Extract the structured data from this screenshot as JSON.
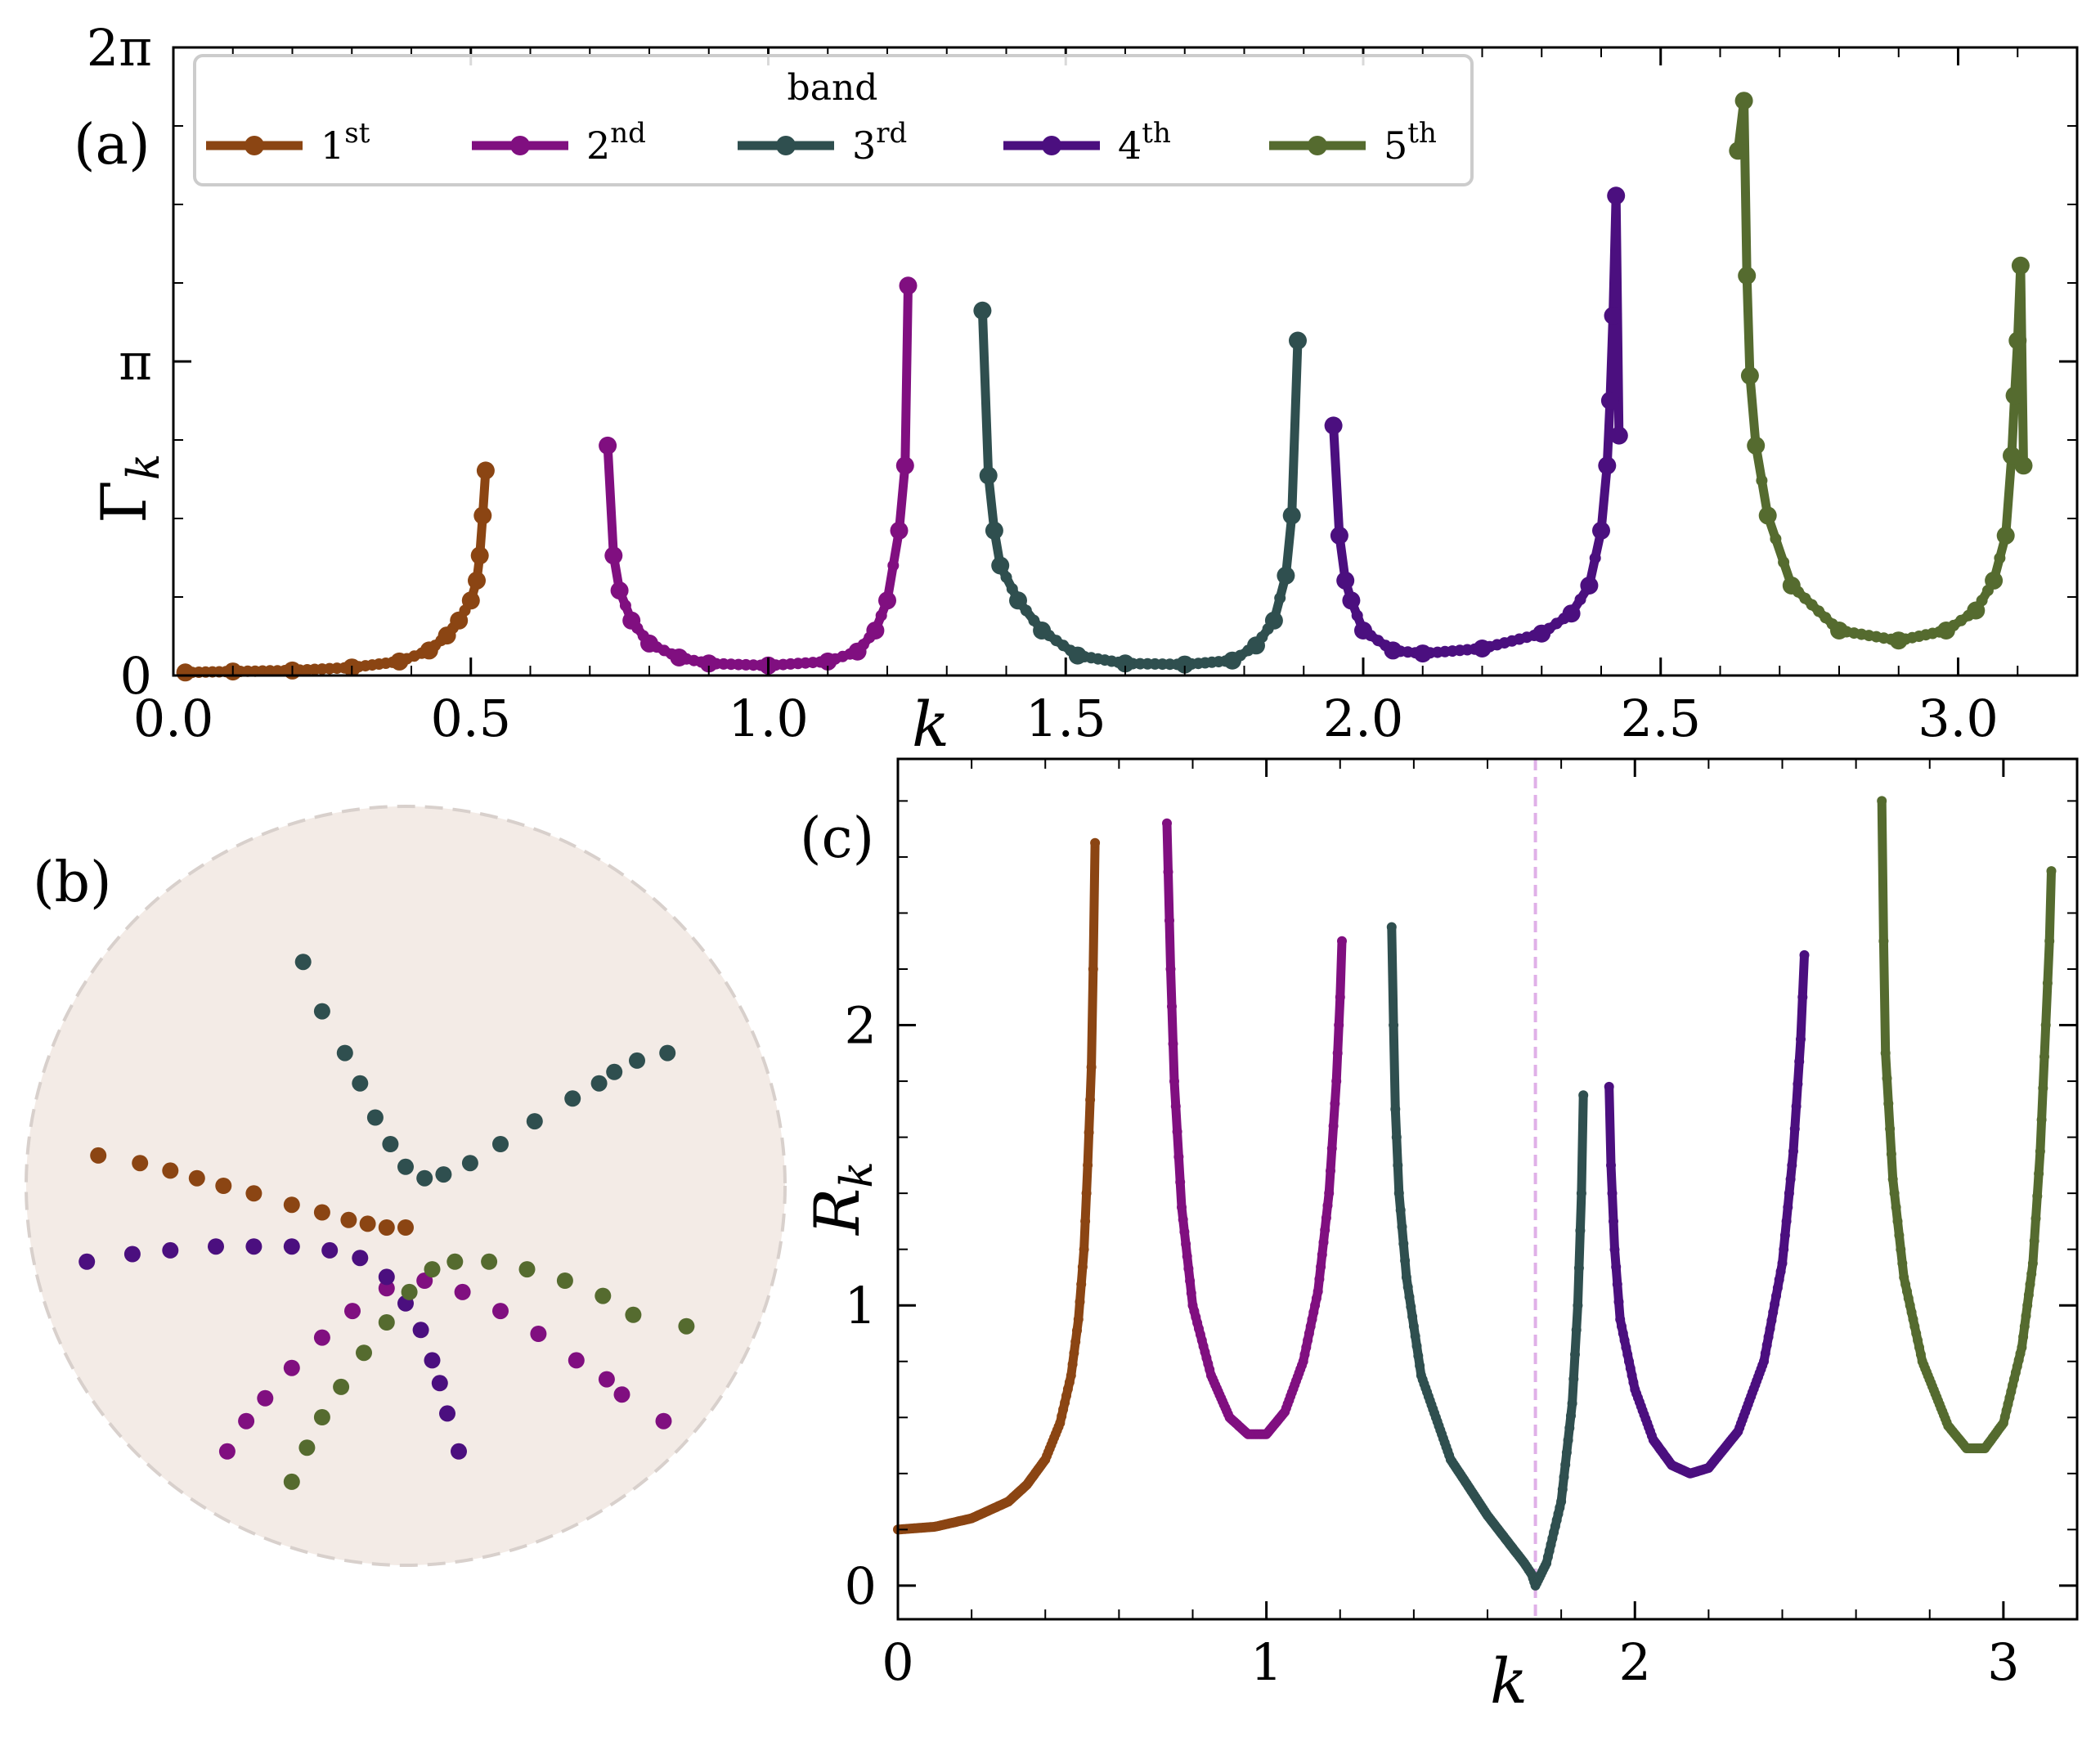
{
  "chart_data": [
    {
      "id": "a",
      "panel_label": "(a)",
      "type": "line",
      "xlabel": "k",
      "ylabel": "Γ",
      "ylabel_sub": "k",
      "xlim": [
        0,
        3.2
      ],
      "ylim": [
        0,
        6.283
      ],
      "x_ticks": [
        {
          "value": 0,
          "label": "0.0"
        },
        {
          "value": 0.5,
          "label": "0.5"
        },
        {
          "value": 1.0,
          "label": "1.0"
        },
        {
          "value": 1.5,
          "label": "1.5"
        },
        {
          "value": 2.0,
          "label": "2.0"
        },
        {
          "value": 2.5,
          "label": "2.5"
        },
        {
          "value": 3.0,
          "label": "3.0"
        }
      ],
      "y_ticks": [
        {
          "value": 0,
          "label": "0"
        },
        {
          "value": 3.1416,
          "label": "π"
        },
        {
          "value": 6.2832,
          "label": "2π"
        }
      ],
      "legend": {
        "title": "band",
        "placement": "top",
        "entries": [
          {
            "base": "1",
            "sup": "st"
          },
          {
            "base": "2",
            "sup": "nd"
          },
          {
            "base": "3",
            "sup": "rd"
          },
          {
            "base": "4",
            "sup": "th"
          },
          {
            "base": "5",
            "sup": "th"
          }
        ]
      },
      "series": [
        {
          "name": "1st",
          "color": "#8B4513",
          "points": [
            [
              0.02,
              0.03
            ],
            [
              0.1,
              0.04
            ],
            [
              0.2,
              0.05
            ],
            [
              0.3,
              0.08
            ],
            [
              0.38,
              0.14
            ],
            [
              0.43,
              0.25
            ],
            [
              0.46,
              0.4
            ],
            [
              0.48,
              0.55
            ],
            [
              0.5,
              0.75
            ],
            [
              0.51,
              0.95
            ],
            [
              0.515,
              1.2
            ],
            [
              0.52,
              1.6
            ],
            [
              0.525,
              2.05
            ]
          ]
        },
        {
          "name": "2nd",
          "color": "#800F80",
          "points": [
            [
              0.73,
              2.3
            ],
            [
              0.74,
              1.2
            ],
            [
              0.75,
              0.85
            ],
            [
              0.77,
              0.55
            ],
            [
              0.8,
              0.32
            ],
            [
              0.85,
              0.18
            ],
            [
              0.9,
              0.12
            ],
            [
              1.0,
              0.1
            ],
            [
              1.1,
              0.14
            ],
            [
              1.15,
              0.24
            ],
            [
              1.18,
              0.45
            ],
            [
              1.2,
              0.75
            ],
            [
              1.22,
              1.45
            ],
            [
              1.23,
              2.1
            ],
            [
              1.235,
              3.9
            ]
          ]
        },
        {
          "name": "3rd",
          "color": "#2F4F4F",
          "points": [
            [
              1.36,
              3.65
            ],
            [
              1.37,
              2.0
            ],
            [
              1.38,
              1.45
            ],
            [
              1.39,
              1.1
            ],
            [
              1.42,
              0.75
            ],
            [
              1.46,
              0.45
            ],
            [
              1.52,
              0.2
            ],
            [
              1.6,
              0.12
            ],
            [
              1.7,
              0.11
            ],
            [
              1.78,
              0.15
            ],
            [
              1.82,
              0.3
            ],
            [
              1.85,
              0.55
            ],
            [
              1.87,
              1.0
            ],
            [
              1.88,
              1.6
            ],
            [
              1.89,
              3.35
            ]
          ]
        },
        {
          "name": "4th",
          "color": "#4B0F7F",
          "points": [
            [
              1.95,
              2.5
            ],
            [
              1.96,
              1.4
            ],
            [
              1.97,
              0.95
            ],
            [
              1.98,
              0.75
            ],
            [
              2.0,
              0.45
            ],
            [
              2.05,
              0.25
            ],
            [
              2.1,
              0.22
            ],
            [
              2.2,
              0.27
            ],
            [
              2.3,
              0.42
            ],
            [
              2.35,
              0.62
            ],
            [
              2.38,
              0.9
            ],
            [
              2.4,
              1.45
            ],
            [
              2.41,
              2.1
            ],
            [
              2.415,
              2.75
            ],
            [
              2.42,
              3.6
            ],
            [
              2.425,
              4.8
            ],
            [
              2.43,
              2.4
            ]
          ]
        },
        {
          "name": "5th",
          "color": "#556B2F",
          "points": [
            [
              2.63,
              5.25
            ],
            [
              2.64,
              5.75
            ],
            [
              2.645,
              4.0
            ],
            [
              2.65,
              3.0
            ],
            [
              2.66,
              2.3
            ],
            [
              2.68,
              1.6
            ],
            [
              2.72,
              0.9
            ],
            [
              2.8,
              0.45
            ],
            [
              2.9,
              0.35
            ],
            [
              2.98,
              0.45
            ],
            [
              3.03,
              0.65
            ],
            [
              3.06,
              0.95
            ],
            [
              3.08,
              1.4
            ],
            [
              3.09,
              2.2
            ],
            [
              3.095,
              2.8
            ],
            [
              3.1,
              3.35
            ],
            [
              3.105,
              4.1
            ],
            [
              3.11,
              2.1
            ]
          ]
        }
      ]
    },
    {
      "id": "b",
      "panel_label": "(b)",
      "type": "scatter",
      "description_units": "complex-plane unit disk",
      "xlim": [
        -1,
        1
      ],
      "ylim": [
        -1,
        1
      ],
      "series": [
        {
          "name": "1st",
          "color": "#8B4513",
          "points": [
            [
              -0.81,
              0.08
            ],
            [
              -0.7,
              0.06
            ],
            [
              -0.62,
              0.04
            ],
            [
              -0.55,
              0.02
            ],
            [
              -0.48,
              0.0
            ],
            [
              -0.4,
              -0.02
            ],
            [
              -0.3,
              -0.05
            ],
            [
              -0.22,
              -0.07
            ],
            [
              -0.15,
              -0.09
            ],
            [
              -0.1,
              -0.1
            ],
            [
              -0.05,
              -0.11
            ],
            [
              0.0,
              -0.11
            ]
          ]
        },
        {
          "name": "2nd",
          "color": "#800F80",
          "points": [
            [
              -0.47,
              -0.7
            ],
            [
              -0.42,
              -0.62
            ],
            [
              -0.37,
              -0.56
            ],
            [
              -0.3,
              -0.48
            ],
            [
              -0.22,
              -0.4
            ],
            [
              -0.14,
              -0.33
            ],
            [
              -0.05,
              -0.27
            ],
            [
              0.05,
              -0.25
            ],
            [
              0.15,
              -0.28
            ],
            [
              0.25,
              -0.33
            ],
            [
              0.35,
              -0.39
            ],
            [
              0.45,
              -0.46
            ],
            [
              0.53,
              -0.51
            ],
            [
              0.57,
              -0.55
            ],
            [
              0.68,
              -0.62
            ]
          ]
        },
        {
          "name": "3rd",
          "color": "#2F4F4F",
          "points": [
            [
              -0.27,
              0.59
            ],
            [
              -0.22,
              0.46
            ],
            [
              -0.16,
              0.35
            ],
            [
              -0.12,
              0.27
            ],
            [
              -0.08,
              0.18
            ],
            [
              -0.04,
              0.11
            ],
            [
              0.0,
              0.05
            ],
            [
              0.05,
              0.02
            ],
            [
              0.1,
              0.03
            ],
            [
              0.17,
              0.06
            ],
            [
              0.25,
              0.11
            ],
            [
              0.34,
              0.17
            ],
            [
              0.44,
              0.23
            ],
            [
              0.51,
              0.27
            ],
            [
              0.55,
              0.3
            ],
            [
              0.61,
              0.33
            ],
            [
              0.69,
              0.35
            ]
          ]
        },
        {
          "name": "4th",
          "color": "#4B0F7F",
          "points": [
            [
              -0.84,
              -0.2
            ],
            [
              -0.72,
              -0.18
            ],
            [
              -0.62,
              -0.17
            ],
            [
              -0.5,
              -0.16
            ],
            [
              -0.4,
              -0.16
            ],
            [
              -0.3,
              -0.16
            ],
            [
              -0.2,
              -0.17
            ],
            [
              -0.12,
              -0.19
            ],
            [
              -0.05,
              -0.24
            ],
            [
              0.0,
              -0.31
            ],
            [
              0.04,
              -0.38
            ],
            [
              0.07,
              -0.46
            ],
            [
              0.09,
              -0.52
            ],
            [
              0.11,
              -0.6
            ],
            [
              0.14,
              -0.7
            ]
          ]
        },
        {
          "name": "5th",
          "color": "#556B2F",
          "points": [
            [
              -0.3,
              -0.78
            ],
            [
              -0.26,
              -0.69
            ],
            [
              -0.22,
              -0.61
            ],
            [
              -0.17,
              -0.53
            ],
            [
              -0.11,
              -0.44
            ],
            [
              -0.05,
              -0.36
            ],
            [
              0.01,
              -0.28
            ],
            [
              0.07,
              -0.22
            ],
            [
              0.13,
              -0.2
            ],
            [
              0.22,
              -0.2
            ],
            [
              0.32,
              -0.22
            ],
            [
              0.42,
              -0.25
            ],
            [
              0.52,
              -0.29
            ],
            [
              0.6,
              -0.34
            ],
            [
              0.74,
              -0.37
            ]
          ]
        }
      ]
    },
    {
      "id": "c",
      "panel_label": "(c)",
      "type": "line",
      "xlabel": "k",
      "ylabel": "R",
      "ylabel_sub": "k",
      "xlim": [
        0,
        3.2
      ],
      "ylim": [
        -0.12,
        2.95
      ],
      "x_ticks": [
        {
          "value": 0,
          "label": "0"
        },
        {
          "value": 1,
          "label": "1"
        },
        {
          "value": 2,
          "label": "2"
        },
        {
          "value": 3,
          "label": "3"
        }
      ],
      "y_ticks": [
        {
          "value": 0,
          "label": "0"
        },
        {
          "value": 1,
          "label": "1"
        },
        {
          "value": 2,
          "label": "2"
        }
      ],
      "vline_x": 1.73,
      "vline_color": "#E0B0E8",
      "series": [
        {
          "name": "1st",
          "color": "#8B4513",
          "points": [
            [
              0.0,
              0.2
            ],
            [
              0.1,
              0.21
            ],
            [
              0.2,
              0.24
            ],
            [
              0.3,
              0.3
            ],
            [
              0.35,
              0.36
            ],
            [
              0.4,
              0.45
            ],
            [
              0.44,
              0.58
            ],
            [
              0.47,
              0.75
            ],
            [
              0.49,
              0.95
            ],
            [
              0.505,
              1.2
            ],
            [
              0.515,
              1.5
            ],
            [
              0.525,
              1.85
            ],
            [
              0.53,
              2.2
            ],
            [
              0.535,
              2.65
            ]
          ]
        },
        {
          "name": "2nd",
          "color": "#800F80",
          "points": [
            [
              0.73,
              2.72
            ],
            [
              0.74,
              2.2
            ],
            [
              0.75,
              1.8
            ],
            [
              0.77,
              1.35
            ],
            [
              0.8,
              1.0
            ],
            [
              0.85,
              0.75
            ],
            [
              0.9,
              0.6
            ],
            [
              0.95,
              0.54
            ],
            [
              1.0,
              0.54
            ],
            [
              1.05,
              0.62
            ],
            [
              1.1,
              0.8
            ],
            [
              1.14,
              1.05
            ],
            [
              1.17,
              1.4
            ],
            [
              1.19,
              1.8
            ],
            [
              1.2,
              2.1
            ],
            [
              1.205,
              2.3
            ]
          ]
        },
        {
          "name": "3rd",
          "color": "#2F4F4F",
          "points": [
            [
              1.34,
              2.35
            ],
            [
              1.345,
              2.0
            ],
            [
              1.35,
              1.7
            ],
            [
              1.36,
              1.4
            ],
            [
              1.38,
              1.1
            ],
            [
              1.42,
              0.75
            ],
            [
              1.5,
              0.45
            ],
            [
              1.6,
              0.25
            ],
            [
              1.7,
              0.08
            ],
            [
              1.72,
              0.04
            ],
            [
              1.73,
              0.0
            ],
            [
              1.76,
              0.08
            ],
            [
              1.8,
              0.3
            ],
            [
              1.83,
              0.65
            ],
            [
              1.845,
              1.0
            ],
            [
              1.855,
              1.4
            ],
            [
              1.86,
              1.75
            ]
          ]
        },
        {
          "name": "4th",
          "color": "#4B0F7F",
          "points": [
            [
              1.93,
              1.78
            ],
            [
              1.935,
              1.5
            ],
            [
              1.945,
              1.2
            ],
            [
              1.96,
              0.95
            ],
            [
              2.0,
              0.7
            ],
            [
              2.05,
              0.52
            ],
            [
              2.1,
              0.43
            ],
            [
              2.15,
              0.4
            ],
            [
              2.2,
              0.42
            ],
            [
              2.28,
              0.55
            ],
            [
              2.35,
              0.8
            ],
            [
              2.4,
              1.15
            ],
            [
              2.43,
              1.55
            ],
            [
              2.45,
              1.95
            ],
            [
              2.46,
              2.25
            ]
          ]
        },
        {
          "name": "5th",
          "color": "#556B2F",
          "points": [
            [
              2.67,
              2.8
            ],
            [
              2.675,
              2.3
            ],
            [
              2.68,
              1.9
            ],
            [
              2.7,
              1.45
            ],
            [
              2.73,
              1.1
            ],
            [
              2.78,
              0.8
            ],
            [
              2.85,
              0.57
            ],
            [
              2.9,
              0.49
            ],
            [
              2.95,
              0.49
            ],
            [
              3.0,
              0.58
            ],
            [
              3.05,
              0.85
            ],
            [
              3.08,
              1.15
            ],
            [
              3.1,
              1.55
            ],
            [
              3.115,
              2.0
            ],
            [
              3.125,
              2.3
            ],
            [
              3.13,
              2.55
            ]
          ]
        }
      ]
    }
  ]
}
